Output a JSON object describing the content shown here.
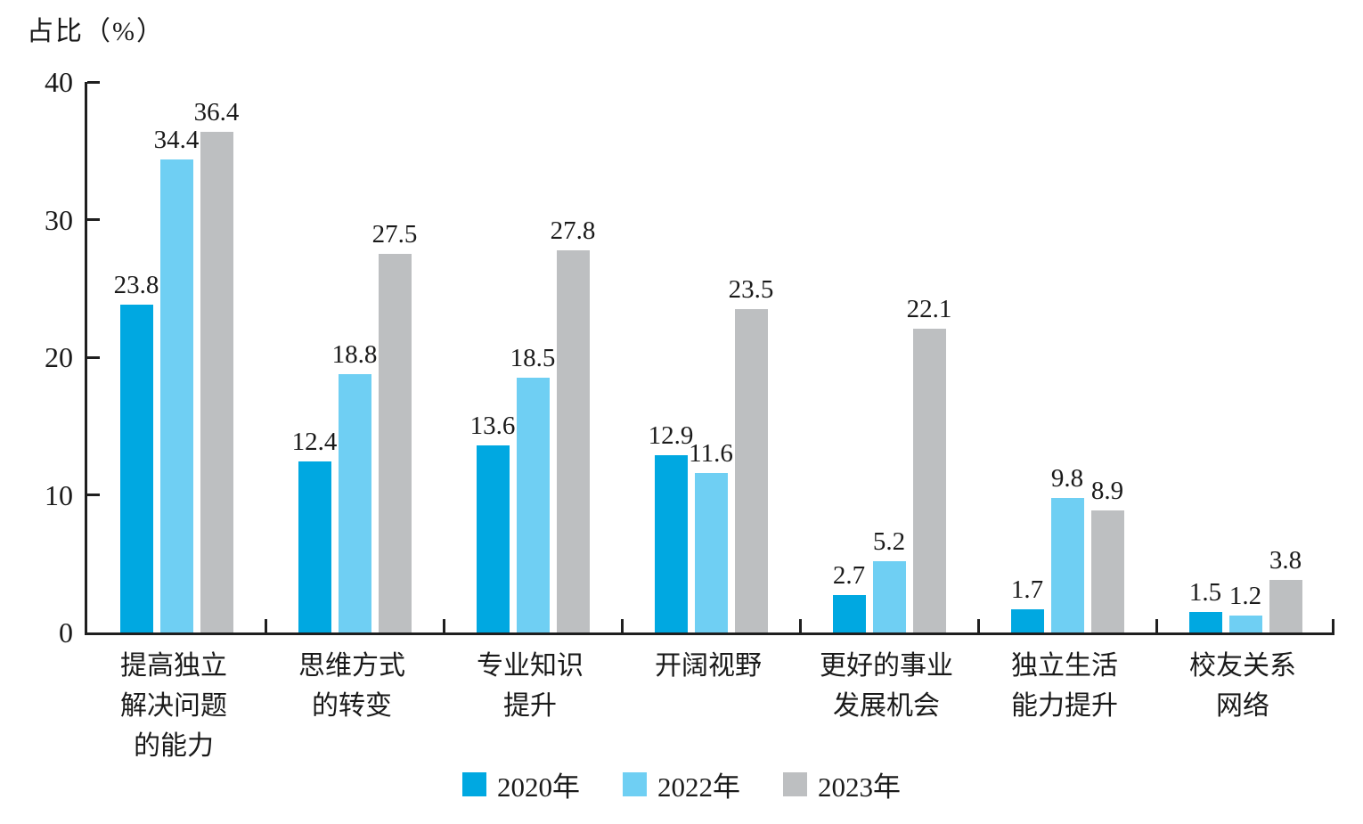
{
  "chart_data": {
    "type": "bar",
    "title": "占比（%）",
    "ylabel": "占比（%）",
    "xlabel": "",
    "ylim": [
      0,
      40
    ],
    "y_ticks": [
      0,
      10,
      20,
      30,
      40
    ],
    "grid": false,
    "legend_position": "bottom",
    "categories": [
      {
        "label": "提高独立解决问题的能力",
        "lines": [
          "提高独立",
          "解决问题",
          "的能力"
        ]
      },
      {
        "label": "思维方式的转变",
        "lines": [
          "思维方式",
          "的转变"
        ]
      },
      {
        "label": "专业知识提升",
        "lines": [
          "专业知识",
          "提升"
        ]
      },
      {
        "label": "开阔视野",
        "lines": [
          "开阔视野"
        ]
      },
      {
        "label": "更好的事业发展机会",
        "lines": [
          "更好的事业",
          "发展机会"
        ]
      },
      {
        "label": "独立生活能力提升",
        "lines": [
          "独立生活",
          "能力提升"
        ]
      },
      {
        "label": "校友关系网络",
        "lines": [
          "校友关系",
          "网络"
        ]
      }
    ],
    "series": [
      {
        "name": "2020年",
        "color": "#00A8E1",
        "values": [
          23.8,
          12.4,
          13.6,
          12.9,
          2.7,
          1.7,
          1.5
        ]
      },
      {
        "name": "2022年",
        "color": "#6FCFF3",
        "values": [
          34.4,
          18.8,
          18.5,
          11.6,
          5.2,
          9.8,
          1.2
        ]
      },
      {
        "name": "2023年",
        "color": "#BDBFC1",
        "values": [
          36.4,
          27.5,
          27.8,
          23.5,
          22.1,
          8.9,
          3.8
        ]
      }
    ],
    "colors": {
      "axis": "#1f1f1f",
      "text": "#1a1a1a"
    }
  }
}
